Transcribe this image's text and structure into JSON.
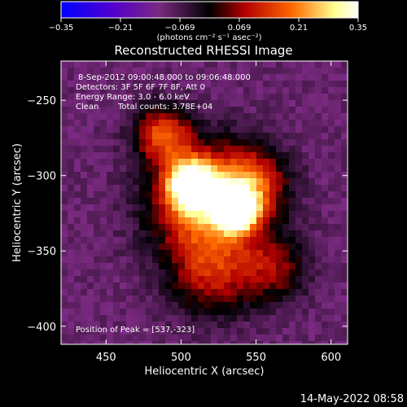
{
  "chart_data": {
    "type": "heatmap",
    "title": "Reconstructed RHESSI Image",
    "xlabel": "Heliocentric X (arcsec)",
    "ylabel": "Heliocentric Y (arcsec)",
    "xlim": [
      420,
      611
    ],
    "ylim": [
      -412,
      -224
    ],
    "x_ticks": [
      450,
      500,
      550,
      600
    ],
    "y_ticks": [
      -250,
      -300,
      -350,
      -400
    ],
    "colorbar": {
      "min": -0.35,
      "max": 0.35,
      "ticks": [
        "-0.35",
        "-0.21",
        "-0.069",
        "0.069",
        "0.21",
        "0.35"
      ],
      "unit_label": "(photons cm⁻² s⁻¹ asec⁻²)",
      "colors": [
        "#0000ff",
        "#5500cc",
        "#7a2a80",
        "#000000",
        "#b40000",
        "#ff6a00",
        "#ffff90",
        "#ffffff"
      ]
    },
    "annotations": {
      "time_range": "8-Sep-2012 09:00:48.000 to 09:06:48.000",
      "detectors": "Detectors: 3F 5F 6F 7F 8F, Att 0",
      "energy": "Energy Range: 3.0 - 6.0 keV",
      "clean": "Clean",
      "total_counts": "Total counts: 3.78E+04",
      "peak": "Position of Peak = [537,-323]"
    },
    "sources": [
      {
        "x": 537,
        "y": -323,
        "peak": 0.35,
        "sigma": 9
      },
      {
        "x": 507,
        "y": -306,
        "peak": 0.3,
        "sigma": 11
      },
      {
        "x": 488,
        "y": -272,
        "peak": 0.15,
        "sigma": 13
      },
      {
        "x": 517,
        "y": -318,
        "peak": 0.22,
        "sigma": 26
      },
      {
        "x": 548,
        "y": -305,
        "peak": 0.1,
        "sigma": 16
      },
      {
        "x": 520,
        "y": -366,
        "peak": 0.07,
        "sigma": 20
      },
      {
        "x": 562,
        "y": -362,
        "peak": 0.05,
        "sigma": 16
      }
    ],
    "background": -0.1
  },
  "footer": {
    "date_stamp": "14-May-2022 08:58"
  }
}
